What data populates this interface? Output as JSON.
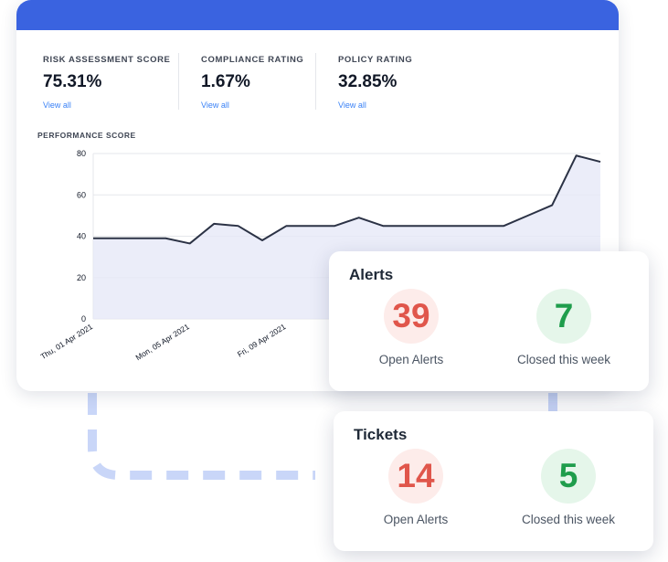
{
  "stats": [
    {
      "label": "RISK ASSESSMENT SCORE",
      "value": "75.31%",
      "link": "View all"
    },
    {
      "label": "COMPLIANCE RATING",
      "value": "1.67%",
      "link": "View all"
    },
    {
      "label": "POLICY RATING",
      "value": "32.85%",
      "link": "View all"
    }
  ],
  "performance": {
    "title": "PERFORMANCE SCORE"
  },
  "chart_data": {
    "type": "area",
    "title": "PERFORMANCE SCORE",
    "xlabel": "",
    "ylabel": "",
    "ylim": [
      0,
      80
    ],
    "yticks": [
      "80",
      "60",
      "40",
      "20",
      "0"
    ],
    "xtick_labels": [
      "Thu, 01 Apr 2021",
      "Mon, 05 Apr 2021",
      "Fri, 09 Apr 2021"
    ],
    "values": [
      39,
      39,
      39,
      39,
      36.5,
      46,
      45,
      38,
      45,
      45,
      45,
      49,
      45,
      45,
      45,
      45,
      45,
      45,
      50,
      55,
      79,
      76
    ],
    "grid": true,
    "line_color": "#2b3245",
    "fill_color": "#e6e8f7"
  },
  "alerts": {
    "title": "Alerts",
    "open": {
      "value": "39",
      "label": "Open Alerts"
    },
    "closed": {
      "value": "7",
      "label": "Closed this week"
    }
  },
  "tickets": {
    "title": "Tickets",
    "open": {
      "value": "14",
      "label": "Open Alerts"
    },
    "closed": {
      "value": "5",
      "label": "Closed this week"
    }
  },
  "colors": {
    "accent": "#3a63e0",
    "open_red": "#e0564b",
    "closed_green": "#1f9d4c",
    "dash": "#c9d6f8"
  }
}
